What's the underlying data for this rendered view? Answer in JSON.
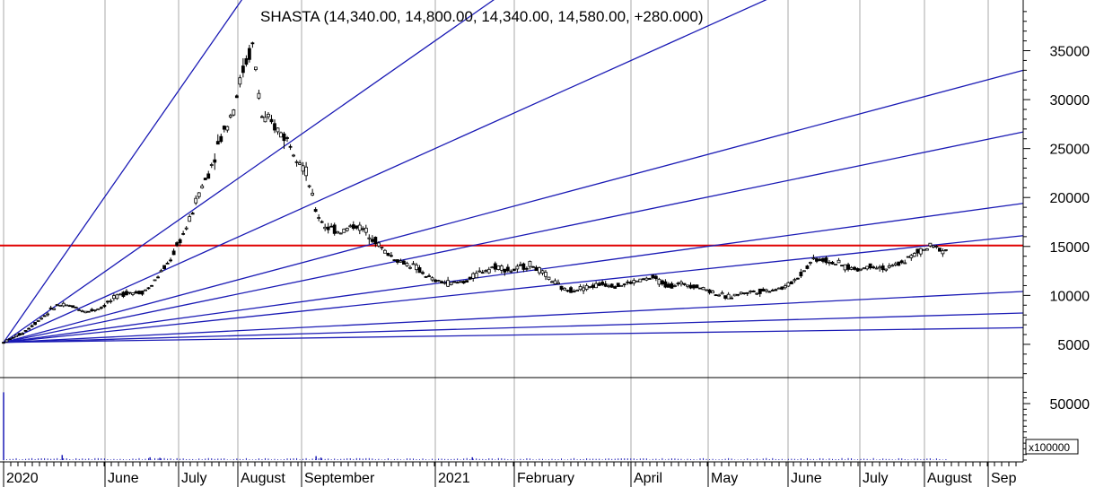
{
  "chart_data": {
    "type": "candlestick",
    "title": "SHASTA (14,340.00, 14,800.00, 14,340.00, 14,580.00, +280.000)",
    "price_axis": {
      "ylim": [
        0,
        40000
      ],
      "ticks": [
        5000,
        10000,
        15000,
        20000,
        25000,
        30000,
        35000
      ],
      "tick_labels": [
        "5000",
        "10000",
        "15000",
        "20000",
        "25000",
        "30000",
        "35000"
      ],
      "side": "right"
    },
    "volume_axis": {
      "ylim": [
        0,
        65000
      ],
      "ticks": [
        50000
      ],
      "tick_labels": [
        "50000"
      ],
      "unit_label": "x100000",
      "side": "right"
    },
    "time_axis": {
      "labels": [
        "2020",
        "June",
        "July",
        "August",
        "September",
        "2021",
        "February",
        "April",
        "May",
        "June",
        "July",
        "August",
        "Sep"
      ]
    },
    "reference_line": {
      "value": 15100,
      "color": "#e00000"
    },
    "gann_fan": {
      "origin_value": 5200,
      "color": "#1b1bb5",
      "line_end_values": [
        155000,
        78000,
        52000,
        33000,
        26700,
        19400,
        16100,
        10400,
        8200,
        6700
      ]
    },
    "price_path": [
      [
        0.0,
        5200
      ],
      [
        0.02,
        6200
      ],
      [
        0.04,
        7800
      ],
      [
        0.055,
        9000
      ],
      [
        0.07,
        8900
      ],
      [
        0.085,
        8300
      ],
      [
        0.1,
        8800
      ],
      [
        0.115,
        9800
      ],
      [
        0.125,
        10300
      ],
      [
        0.14,
        10300
      ],
      [
        0.15,
        10800
      ],
      [
        0.16,
        12200
      ],
      [
        0.17,
        13500
      ],
      [
        0.18,
        15500
      ],
      [
        0.19,
        17500
      ],
      [
        0.2,
        20500
      ],
      [
        0.21,
        22500
      ],
      [
        0.22,
        25500
      ],
      [
        0.235,
        29000
      ],
      [
        0.245,
        33000
      ],
      [
        0.255,
        35500
      ],
      [
        0.265,
        28000
      ],
      [
        0.275,
        27500
      ],
      [
        0.29,
        26000
      ],
      [
        0.3,
        24500
      ],
      [
        0.31,
        22500
      ],
      [
        0.32,
        18500
      ],
      [
        0.33,
        17000
      ],
      [
        0.345,
        16500
      ],
      [
        0.36,
        17200
      ],
      [
        0.375,
        16300
      ],
      [
        0.39,
        14500
      ],
      [
        0.405,
        13500
      ],
      [
        0.42,
        13000
      ],
      [
        0.44,
        11500
      ],
      [
        0.46,
        11200
      ],
      [
        0.475,
        11500
      ],
      [
        0.49,
        12500
      ],
      [
        0.505,
        13000
      ],
      [
        0.52,
        12500
      ],
      [
        0.54,
        13200
      ],
      [
        0.555,
        12000
      ],
      [
        0.575,
        10500
      ],
      [
        0.595,
        10800
      ],
      [
        0.615,
        11200
      ],
      [
        0.63,
        11000
      ],
      [
        0.65,
        11500
      ],
      [
        0.665,
        11800
      ],
      [
        0.68,
        11000
      ],
      [
        0.7,
        11200
      ],
      [
        0.72,
        10600
      ],
      [
        0.74,
        9800
      ],
      [
        0.76,
        10300
      ],
      [
        0.78,
        10500
      ],
      [
        0.8,
        10800
      ],
      [
        0.815,
        12000
      ],
      [
        0.83,
        13800
      ],
      [
        0.845,
        13500
      ],
      [
        0.86,
        13000
      ],
      [
        0.875,
        12600
      ],
      [
        0.89,
        13100
      ],
      [
        0.905,
        12700
      ],
      [
        0.92,
        13400
      ],
      [
        0.935,
        14300
      ],
      [
        0.95,
        15000
      ],
      [
        0.965,
        14600
      ]
    ],
    "volume_spikes": [
      [
        0.0,
        60000
      ],
      [
        0.06,
        4500
      ],
      [
        0.15,
        2500
      ],
      [
        0.32,
        3500
      ],
      [
        0.325,
        2200
      ],
      [
        0.16,
        2000
      ],
      [
        0.48,
        2500
      ]
    ],
    "grid": "vertical",
    "legend": "none"
  }
}
